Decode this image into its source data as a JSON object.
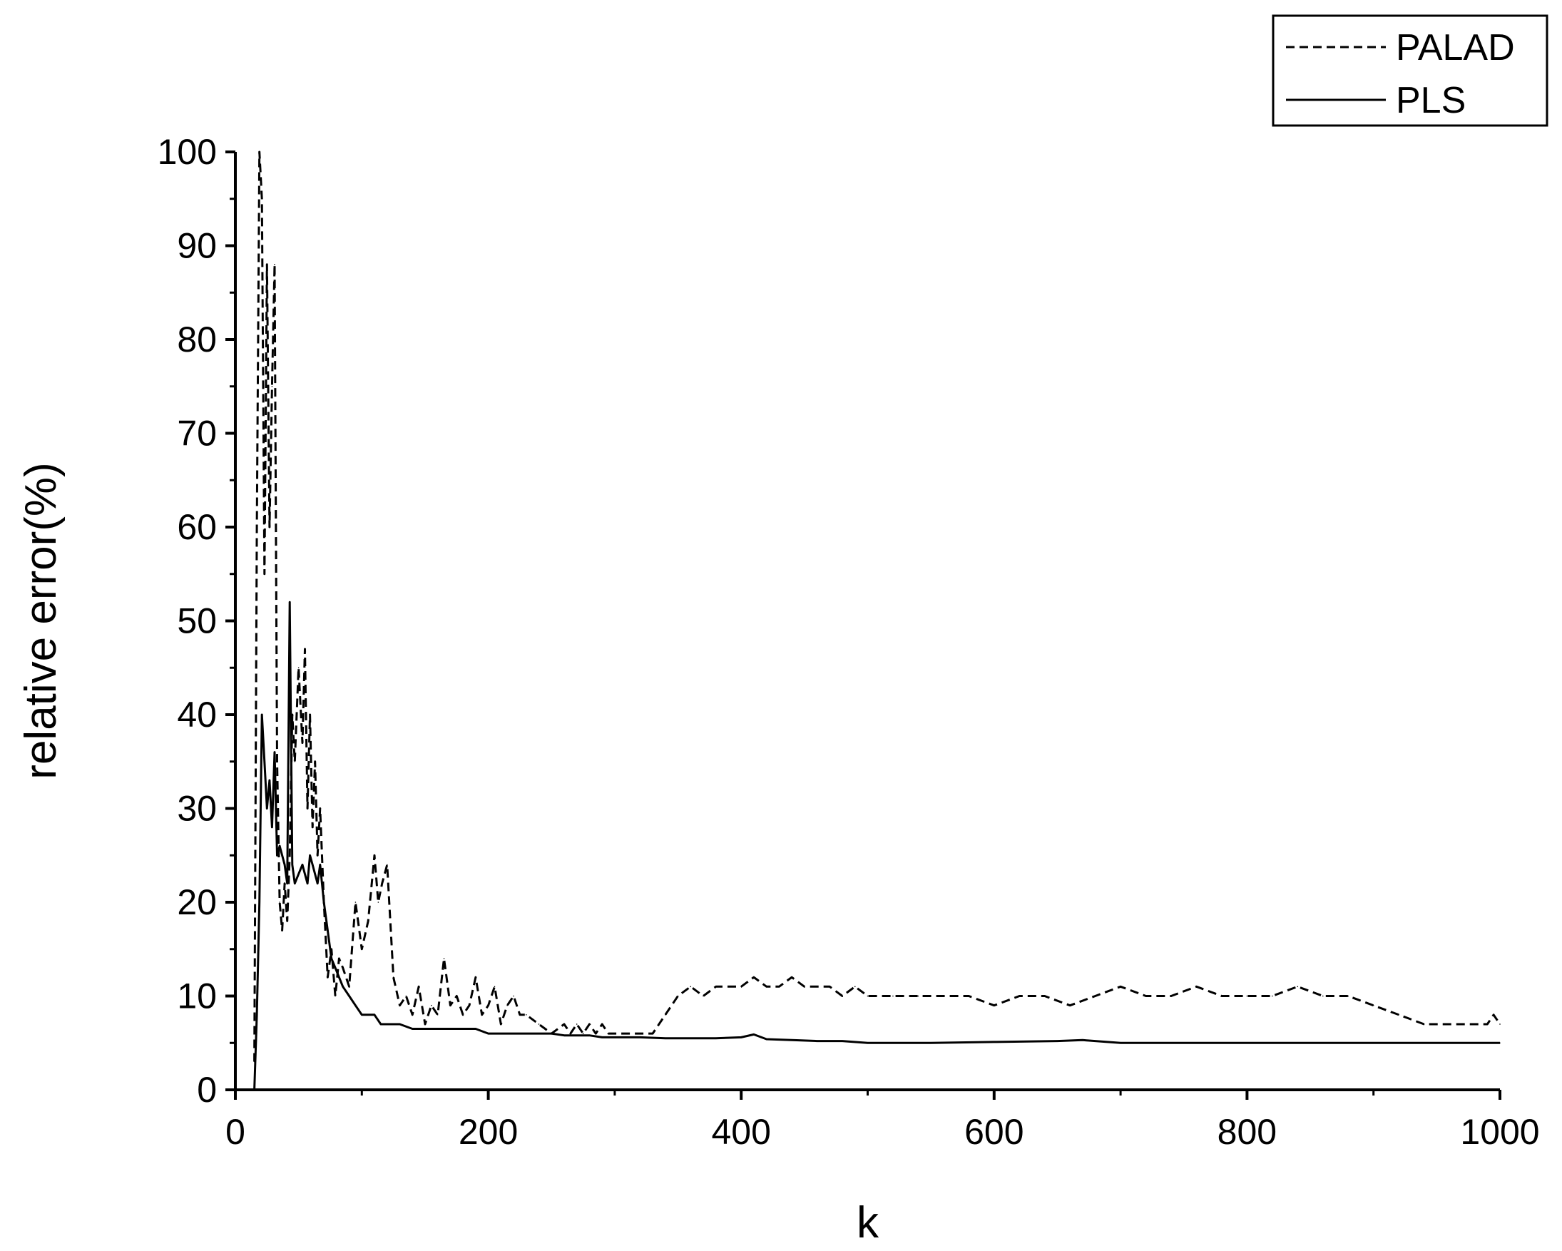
{
  "chart_data": {
    "type": "line",
    "title": "",
    "xlabel": "k",
    "ylabel": "relative error(%)",
    "xlim": [
      0,
      1000
    ],
    "ylim": [
      0,
      100
    ],
    "x_ticks": [
      "0",
      "200",
      "400",
      "600",
      "800",
      "1000"
    ],
    "y_ticks": [
      "0",
      "10",
      "20",
      "30",
      "40",
      "50",
      "60",
      "70",
      "80",
      "90",
      "100"
    ],
    "grid": false,
    "legend_position": "top-right",
    "series": [
      {
        "name": "PALAD",
        "style": "dashed",
        "color": "#000000",
        "x": [
          15,
          17,
          19,
          21,
          23,
          25,
          27,
          29,
          31,
          33,
          35,
          37,
          39,
          41,
          43,
          45,
          47,
          50,
          53,
          55,
          57,
          59,
          61,
          63,
          65,
          67,
          70,
          73,
          76,
          79,
          82,
          85,
          90,
          95,
          100,
          105,
          110,
          113,
          116,
          120,
          125,
          130,
          135,
          140,
          145,
          150,
          155,
          160,
          165,
          170,
          175,
          180,
          185,
          190,
          195,
          200,
          205,
          210,
          215,
          220,
          225,
          230,
          240,
          250,
          260,
          265,
          270,
          275,
          280,
          285,
          290,
          295,
          300,
          310,
          320,
          330,
          340,
          350,
          360,
          370,
          380,
          390,
          400,
          410,
          420,
          430,
          440,
          450,
          460,
          470,
          480,
          490,
          500,
          520,
          540,
          560,
          580,
          600,
          620,
          640,
          660,
          680,
          700,
          720,
          740,
          760,
          780,
          800,
          820,
          840,
          860,
          880,
          900,
          920,
          940,
          960,
          980,
          990,
          995,
          1000
        ],
        "y": [
          3,
          60,
          100,
          95,
          55,
          88,
          60,
          75,
          88,
          35,
          20,
          17,
          22,
          18,
          25,
          40,
          35,
          45,
          37,
          47,
          30,
          40,
          28,
          35,
          25,
          30,
          20,
          12,
          15,
          10,
          14,
          13,
          11,
          20,
          15,
          18,
          25,
          20,
          22,
          24,
          12,
          9,
          10,
          8,
          11,
          7,
          9,
          8,
          14,
          9,
          10,
          8,
          9,
          12,
          8,
          9,
          11,
          7,
          9,
          10,
          8,
          8,
          7,
          6,
          7,
          6,
          7,
          6,
          7,
          6,
          7,
          6,
          6,
          6,
          6,
          6,
          8,
          10,
          11,
          10,
          11,
          11,
          11,
          12,
          11,
          11,
          12,
          11,
          11,
          11,
          10,
          11,
          10,
          10,
          10,
          10,
          10,
          9,
          10,
          10,
          9,
          10,
          11,
          10,
          10,
          11,
          10,
          10,
          10,
          11,
          10,
          10,
          9,
          8,
          7,
          7,
          7,
          7,
          8,
          7
        ]
      },
      {
        "name": "PLS",
        "style": "solid",
        "color": "#000000",
        "x": [
          15,
          17,
          19,
          21,
          23,
          25,
          27,
          29,
          31,
          33,
          35,
          37,
          39,
          41,
          43,
          45,
          47,
          50,
          53,
          55,
          57,
          59,
          61,
          63,
          65,
          67,
          70,
          73,
          76,
          79,
          82,
          85,
          90,
          95,
          100,
          105,
          110,
          115,
          120,
          125,
          130,
          140,
          150,
          160,
          170,
          180,
          190,
          200,
          210,
          220,
          230,
          240,
          250,
          260,
          270,
          280,
          290,
          300,
          320,
          340,
          360,
          380,
          400,
          410,
          420,
          440,
          460,
          480,
          500,
          550,
          600,
          650,
          670,
          680,
          700,
          750,
          800,
          850,
          900,
          950,
          1000
        ],
        "y": [
          0,
          8,
          20,
          40,
          35,
          30,
          33,
          28,
          36,
          25,
          26,
          25,
          24,
          22,
          52,
          24,
          22,
          23,
          24,
          23,
          22,
          25,
          24,
          23,
          22,
          24,
          20,
          17,
          14,
          13,
          12,
          11,
          10,
          9,
          8,
          8,
          8,
          7,
          7,
          7,
          7,
          6.5,
          6.5,
          6.5,
          6.5,
          6.5,
          6.5,
          6,
          6,
          6,
          6,
          6,
          6,
          5.8,
          5.8,
          5.8,
          5.6,
          5.6,
          5.6,
          5.5,
          5.5,
          5.5,
          5.6,
          5.9,
          5.4,
          5.3,
          5.2,
          5.2,
          5.0,
          5.0,
          5.1,
          5.2,
          5.3,
          5.2,
          5.0,
          5.0,
          5.0,
          5.0,
          5.0,
          5.0,
          5.0
        ]
      }
    ]
  }
}
